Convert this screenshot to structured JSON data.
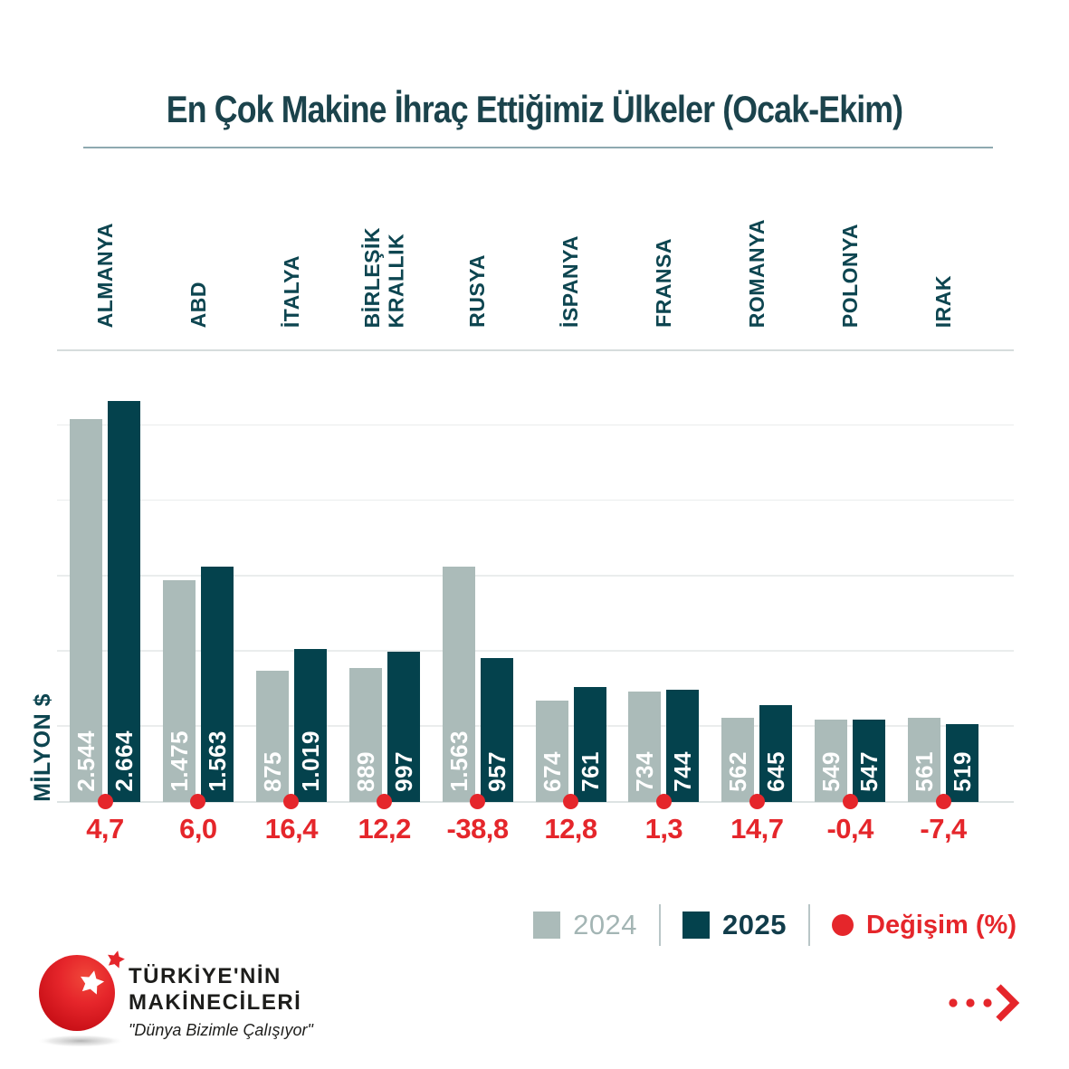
{
  "title": "En Çok Makine İhraç Ettiğimiz Ülkeler (Ocak-Ekim)",
  "y_axis_label": "MİLYON $",
  "legend": {
    "series_2024_label": "2024",
    "series_2025_label": "2025",
    "change_label": "Değişim (%)"
  },
  "chart_data": {
    "type": "bar",
    "title": "En Çok Makine İhraç Ettiğimiz Ülkeler (Ocak-Ekim)",
    "ylabel": "MİLYON $",
    "ylim": [
      0,
      3000
    ],
    "gridline_step": 500,
    "grid": true,
    "legend_position": "bottom-right",
    "categories": [
      "ALMANYA",
      "ABD",
      "İTALYA",
      "BİRLEŞİK\nKRALLIK",
      "RUSYA",
      "İSPANYA",
      "FRANSA",
      "ROMANYA",
      "POLONYA",
      "IRAK"
    ],
    "series": [
      {
        "name": "2024",
        "values": [
          2544,
          1475,
          875,
          889,
          1563,
          674,
          734,
          562,
          549,
          561
        ],
        "value_labels": [
          "2.544",
          "1.475",
          "875",
          "889",
          "1.563",
          "674",
          "734",
          "562",
          "549",
          "561"
        ]
      },
      {
        "name": "2025",
        "values": [
          2664,
          1563,
          1019,
          997,
          957,
          761,
          744,
          645,
          547,
          519
        ],
        "value_labels": [
          "2.664",
          "1.563",
          "1.019",
          "997",
          "957",
          "761",
          "744",
          "645",
          "547",
          "519"
        ]
      }
    ],
    "change_pct_labels": [
      "4,7",
      "6,0",
      "16,4",
      "12,2",
      "-38,8",
      "12,8",
      "1,3",
      "14,7",
      "-0,4",
      "-7,4"
    ],
    "change_pct_values": [
      4.7,
      6.0,
      16.4,
      12.2,
      -38.8,
      12.8,
      1.3,
      14.7,
      -0.4,
      -7.4
    ]
  },
  "colors": {
    "bar_2024": "#abbbb9",
    "bar_2025": "#04424d",
    "change_red": "#e5262b",
    "teal_text": "#0d4550",
    "gridline": "#eaeded"
  },
  "logo": {
    "line1": "TÜRKİYE'NİN",
    "line2": "MAKİNECİLERİ",
    "tagline": "\"Dünya Bizimle Çalışıyor\""
  }
}
